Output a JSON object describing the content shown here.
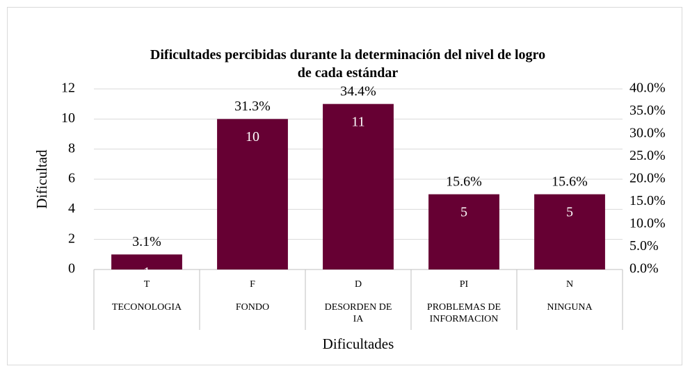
{
  "chart_data": {
    "type": "bar",
    "title": "Dificultades percibidas durante la determinación del nivel de logro\nde cada estándar",
    "categories": [
      "T",
      "F",
      "D",
      "PI",
      "N"
    ],
    "category_names": [
      "TECONOLOGIA",
      "FONDO",
      "DESORDEN DE\nIA",
      "PROBLEMAS DE\nINFORMACION",
      "NINGUNA"
    ],
    "series": [
      {
        "color": "#660033",
        "values": [
          1,
          10,
          11,
          5,
          5
        ]
      },
      {
        "axis": "y2",
        "values": [
          3.1,
          31.3,
          34.4,
          15.6,
          15.6
        ],
        "value_labels": [
          "3.1%",
          "31.3%",
          "34.4%",
          "15.6%",
          "15.6%"
        ]
      }
    ],
    "xlabel": "Dificultades",
    "ylabel": "Dificultad",
    "ylim": [
      0,
      12
    ],
    "yticks": [
      0,
      2,
      4,
      6,
      8,
      10,
      12
    ],
    "y2lim": [
      0,
      40
    ],
    "y2ticks": [
      {
        "value": 0,
        "label": "0.0%"
      },
      {
        "value": 5,
        "label": "5.0%"
      },
      {
        "value": 10,
        "label": "10.0%"
      },
      {
        "value": 15,
        "label": "15.0%"
      },
      {
        "value": 20,
        "label": "20.0%"
      },
      {
        "value": 25,
        "label": "25.0%"
      },
      {
        "value": 30,
        "label": "30.0%"
      },
      {
        "value": 35,
        "label": "35.0%"
      },
      {
        "value": 40,
        "label": "40.0%"
      }
    ],
    "grid": true
  }
}
